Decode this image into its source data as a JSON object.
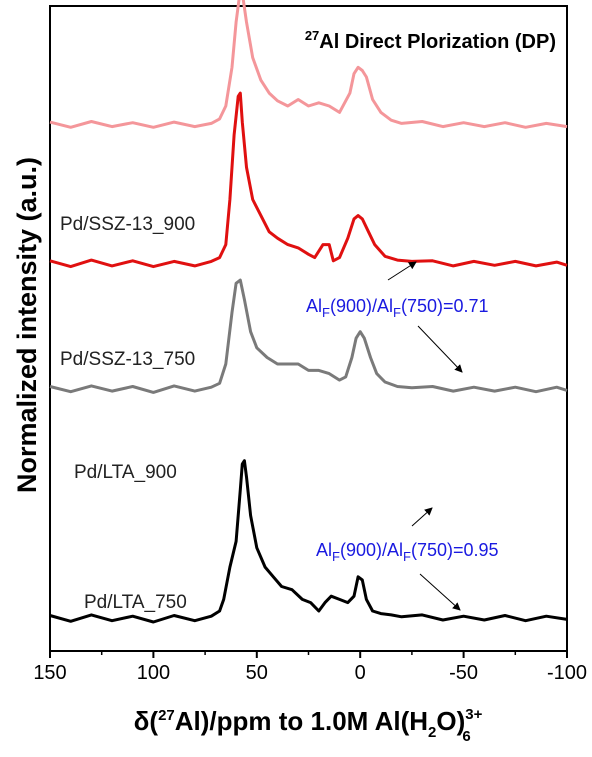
{
  "chart_data": {
    "type": "line",
    "title_sup": "27",
    "title_text": "Al Direct Plorization (DP)",
    "xlabel": {
      "prefix": "δ(",
      "sup27": "27",
      "mid": "Al)/ppm to 1.0M Al(H",
      "sub2": "2",
      "oparen": "O)",
      "sup": "3+",
      "sub": "6"
    },
    "ylabel": "Normalized intensity (a.u.)",
    "xlim": [
      150,
      -100
    ],
    "ylim": [
      0,
      1
    ],
    "xticks": [
      150,
      100,
      50,
      0,
      -50,
      -100
    ],
    "xtick_labels": [
      "150",
      "100",
      "50",
      "0",
      "-50",
      "-100"
    ],
    "series": [
      {
        "name": "Pd/SSZ-13_900",
        "color": "#f4969a",
        "offset": 0.815,
        "points": [
          [
            150,
            0.005
          ],
          [
            140,
            -0.003
          ],
          [
            130,
            0.006
          ],
          [
            120,
            -0.002
          ],
          [
            110,
            0.004
          ],
          [
            100,
            -0.003
          ],
          [
            90,
            0.005
          ],
          [
            80,
            -0.002
          ],
          [
            72,
            0.003
          ],
          [
            68,
            0.01
          ],
          [
            65,
            0.03
          ],
          [
            62,
            0.09
          ],
          [
            60,
            0.16
          ],
          [
            58,
            0.21
          ],
          [
            57,
            0.205
          ],
          [
            55,
            0.16
          ],
          [
            52,
            0.105
          ],
          [
            48,
            0.07
          ],
          [
            44,
            0.05
          ],
          [
            40,
            0.038
          ],
          [
            35,
            0.03
          ],
          [
            30,
            0.04
          ],
          [
            25,
            0.03
          ],
          [
            20,
            0.035
          ],
          [
            15,
            0.03
          ],
          [
            10,
            0.02
          ],
          [
            5,
            0.05
          ],
          [
            3,
            0.08
          ],
          [
            1,
            0.09
          ],
          [
            -1,
            0.085
          ],
          [
            -3,
            0.075
          ],
          [
            -6,
            0.04
          ],
          [
            -10,
            0.02
          ],
          [
            -15,
            0.008
          ],
          [
            -20,
            0.003
          ],
          [
            -30,
            0.006
          ],
          [
            -40,
            -0.002
          ],
          [
            -50,
            0.004
          ],
          [
            -60,
            -0.002
          ],
          [
            -70,
            0.004
          ],
          [
            -80,
            -0.003
          ],
          [
            -90,
            0.003
          ],
          [
            -100,
            -0.002
          ]
        ]
      },
      {
        "name": "Pd/SSZ-13_750",
        "color": "#e01010",
        "offset": 0.6,
        "points": [
          [
            150,
            0.005
          ],
          [
            140,
            -0.004
          ],
          [
            130,
            0.006
          ],
          [
            120,
            -0.003
          ],
          [
            110,
            0.005
          ],
          [
            100,
            -0.004
          ],
          [
            90,
            0.004
          ],
          [
            80,
            -0.003
          ],
          [
            72,
            0.004
          ],
          [
            68,
            0.01
          ],
          [
            65,
            0.03
          ],
          [
            63,
            0.1
          ],
          [
            61,
            0.2
          ],
          [
            59,
            0.26
          ],
          [
            58,
            0.265
          ],
          [
            57,
            0.22
          ],
          [
            55,
            0.15
          ],
          [
            52,
            0.1
          ],
          [
            48,
            0.075
          ],
          [
            44,
            0.05
          ],
          [
            40,
            0.04
          ],
          [
            35,
            0.03
          ],
          [
            30,
            0.025
          ],
          [
            25,
            0.015
          ],
          [
            22,
            0.01
          ],
          [
            18,
            0.03
          ],
          [
            15,
            0.03
          ],
          [
            13,
            0.005
          ],
          [
            10,
            0.01
          ],
          [
            6,
            0.04
          ],
          [
            3,
            0.07
          ],
          [
            1,
            0.075
          ],
          [
            -1,
            0.07
          ],
          [
            -4,
            0.05
          ],
          [
            -7,
            0.03
          ],
          [
            -12,
            0.012
          ],
          [
            -18,
            0.006
          ],
          [
            -25,
            0.004
          ],
          [
            -35,
            0.005
          ],
          [
            -45,
            -0.003
          ],
          [
            -55,
            0.004
          ],
          [
            -65,
            -0.002
          ],
          [
            -75,
            0.004
          ],
          [
            -85,
            -0.003
          ],
          [
            -95,
            0.003
          ],
          [
            -100,
            -0.002
          ]
        ]
      },
      {
        "name": "Pd/LTA_900",
        "color": "#7a7a7a",
        "offset": 0.405,
        "points": [
          [
            150,
            0.005
          ],
          [
            140,
            -0.003
          ],
          [
            130,
            0.006
          ],
          [
            120,
            -0.002
          ],
          [
            110,
            0.005
          ],
          [
            100,
            -0.004
          ],
          [
            90,
            0.006
          ],
          [
            80,
            -0.002
          ],
          [
            72,
            0.004
          ],
          [
            68,
            0.01
          ],
          [
            65,
            0.04
          ],
          [
            62,
            0.12
          ],
          [
            60,
            0.165
          ],
          [
            58,
            0.17
          ],
          [
            56,
            0.14
          ],
          [
            53,
            0.09
          ],
          [
            50,
            0.065
          ],
          [
            45,
            0.05
          ],
          [
            40,
            0.04
          ],
          [
            35,
            0.04
          ],
          [
            30,
            0.04
          ],
          [
            25,
            0.03
          ],
          [
            20,
            0.03
          ],
          [
            15,
            0.025
          ],
          [
            10,
            0.015
          ],
          [
            7,
            0.02
          ],
          [
            4,
            0.05
          ],
          [
            2,
            0.08
          ],
          [
            0,
            0.09
          ],
          [
            -2,
            0.08
          ],
          [
            -5,
            0.05
          ],
          [
            -8,
            0.025
          ],
          [
            -12,
            0.012
          ],
          [
            -18,
            0.005
          ],
          [
            -25,
            0.003
          ],
          [
            -35,
            0.005
          ],
          [
            -45,
            -0.002
          ],
          [
            -55,
            0.004
          ],
          [
            -65,
            -0.002
          ],
          [
            -75,
            0.004
          ],
          [
            -85,
            -0.003
          ],
          [
            -95,
            0.004
          ],
          [
            -100,
            -0.001
          ]
        ]
      },
      {
        "name": "Pd/LTA_750",
        "color": "#000000",
        "offset": 0.05,
        "points": [
          [
            150,
            0.005
          ],
          [
            140,
            -0.004
          ],
          [
            130,
            0.006
          ],
          [
            120,
            -0.003
          ],
          [
            110,
            0.004
          ],
          [
            100,
            -0.005
          ],
          [
            90,
            0.005
          ],
          [
            80,
            -0.003
          ],
          [
            72,
            0.004
          ],
          [
            68,
            0.012
          ],
          [
            66,
            0.03
          ],
          [
            63,
            0.08
          ],
          [
            60,
            0.12
          ],
          [
            58,
            0.2
          ],
          [
            57,
            0.24
          ],
          [
            56,
            0.245
          ],
          [
            55,
            0.22
          ],
          [
            53,
            0.16
          ],
          [
            50,
            0.11
          ],
          [
            46,
            0.08
          ],
          [
            42,
            0.065
          ],
          [
            38,
            0.05
          ],
          [
            33,
            0.045
          ],
          [
            28,
            0.03
          ],
          [
            24,
            0.025
          ],
          [
            20,
            0.012
          ],
          [
            17,
            0.025
          ],
          [
            14,
            0.035
          ],
          [
            10,
            0.03
          ],
          [
            6,
            0.025
          ],
          [
            3,
            0.035
          ],
          [
            1,
            0.065
          ],
          [
            -1,
            0.06
          ],
          [
            -3,
            0.03
          ],
          [
            -6,
            0.012
          ],
          [
            -10,
            0.008
          ],
          [
            -15,
            0.006
          ],
          [
            -20,
            0.003
          ],
          [
            -30,
            0.006
          ],
          [
            -40,
            -0.002
          ],
          [
            -50,
            0.004
          ],
          [
            -60,
            -0.002
          ],
          [
            -70,
            0.005
          ],
          [
            -80,
            -0.003
          ],
          [
            -90,
            0.004
          ],
          [
            -100,
            -0.001
          ]
        ]
      }
    ],
    "annotations": [
      {
        "base": "Al",
        "sub1": "F",
        "mid": "(900)/Al",
        "sub2": "F",
        "tail": "(750)=0.71",
        "color": "#1a1ae0"
      },
      {
        "base": "Al",
        "sub1": "F",
        "mid": "(900)/Al",
        "sub2": "F",
        "tail": "(750)=0.95",
        "color": "#1a1ae0"
      }
    ]
  }
}
